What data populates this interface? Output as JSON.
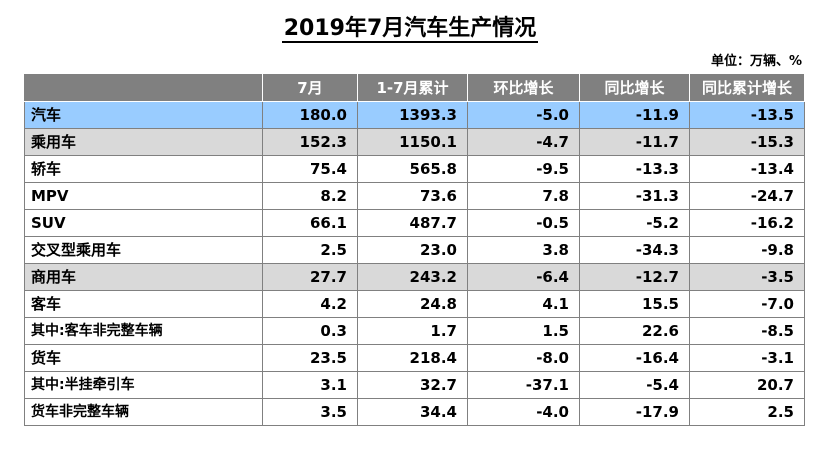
{
  "title": "2019年7月汽车生产情况",
  "unit": "单位：万辆、%",
  "columns": [
    "",
    "7月",
    "1-7月累计",
    "环比增长",
    "同比增长",
    "同比累计增长"
  ],
  "rows": [
    {
      "name": "汽车",
      "level": "auto",
      "indent": 0,
      "values": [
        "180.0",
        "1393.3",
        "-5.0",
        "-11.9",
        "-13.5"
      ]
    },
    {
      "name": "乘用车",
      "level": "main",
      "indent": 1,
      "values": [
        "152.3",
        "1150.1",
        "-4.7",
        "-11.7",
        "-15.3"
      ]
    },
    {
      "name": "轿车",
      "level": "sub",
      "indent": 2,
      "values": [
        "75.4",
        "565.8",
        "-9.5",
        "-13.3",
        "-13.4"
      ]
    },
    {
      "name": "MPV",
      "level": "sub",
      "indent": 2,
      "values": [
        "8.2",
        "73.6",
        "7.8",
        "-31.3",
        "-24.7"
      ]
    },
    {
      "name": "SUV",
      "level": "sub",
      "indent": 2,
      "values": [
        "66.1",
        "487.7",
        "-0.5",
        "-5.2",
        "-16.2"
      ]
    },
    {
      "name": "交叉型乘用车",
      "level": "sub",
      "indent": 2,
      "values": [
        "2.5",
        "23.0",
        "3.8",
        "-34.3",
        "-9.8"
      ]
    },
    {
      "name": "商用车",
      "level": "main",
      "indent": 1,
      "values": [
        "27.7",
        "243.2",
        "-6.4",
        "-12.7",
        "-3.5"
      ]
    },
    {
      "name": "客车",
      "level": "sub",
      "indent": 2,
      "values": [
        "4.2",
        "24.8",
        "4.1",
        "15.5",
        "-7.0"
      ]
    },
    {
      "name": "其中:客车非完整车辆",
      "level": "detail",
      "indent": 3,
      "values": [
        "0.3",
        "1.7",
        "1.5",
        "22.6",
        "-8.5"
      ]
    },
    {
      "name": "货车",
      "level": "sub",
      "indent": 2,
      "values": [
        "23.5",
        "218.4",
        "-8.0",
        "-16.4",
        "-3.1"
      ]
    },
    {
      "name": "其中:半挂牵引车",
      "level": "detail",
      "indent": 3,
      "values": [
        "3.1",
        "32.7",
        "-37.1",
        "-5.4",
        "20.7"
      ]
    },
    {
      "name": "货车非完整车辆",
      "level": "detail",
      "indent": 3,
      "values": [
        "3.5",
        "34.4",
        "-4.0",
        "-17.9",
        "2.5"
      ]
    }
  ]
}
